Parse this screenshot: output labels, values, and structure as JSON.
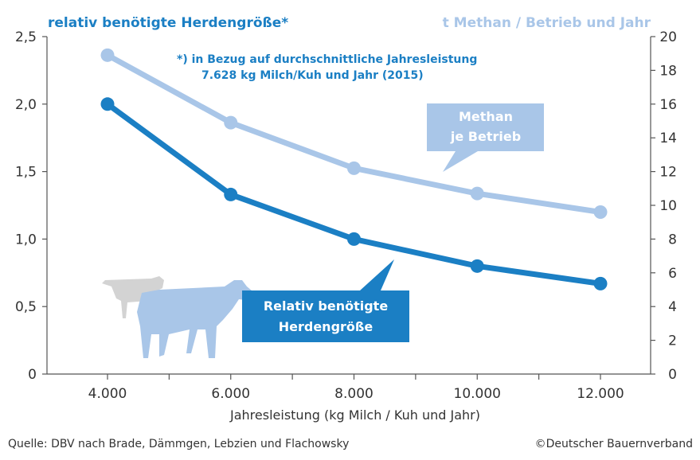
{
  "chart_data": {
    "type": "line",
    "left_axis_title": "relativ benötigte Herdengröße*",
    "right_axis_title": "t Methan / Betrieb und Jahr",
    "footnote": [
      "*) in Bezug auf durchschnittliche Jahresleistung",
      "7.628 kg Milch/Kuh und Jahr (2015)"
    ],
    "xlabel": "Jahresleistung (kg Milch / Kuh und Jahr)",
    "x": [
      4000,
      6000,
      8000,
      10000,
      12000
    ],
    "x_tick_labels": [
      "4.000",
      "6.000",
      "8.000",
      "10.000",
      "12.000"
    ],
    "y_left_ticks": [
      "0",
      "0,5",
      "1,0",
      "1,5",
      "2,0",
      "2,5"
    ],
    "y_right_ticks": [
      "0",
      "2",
      "4",
      "6",
      "8",
      "10",
      "12",
      "14",
      "16",
      "18",
      "20"
    ],
    "ylim_left": [
      0,
      2.5
    ],
    "ylim_right": [
      0,
      20
    ],
    "grid": false,
    "series": [
      {
        "name": "Methan je Betrieb",
        "axis": "right",
        "color": "#a9c6e8",
        "values": [
          18.9,
          14.9,
          12.2,
          10.7,
          9.6
        ]
      },
      {
        "name": "Relativ benötigte Herdengröße",
        "axis": "left",
        "color": "#1b7fc4",
        "values": [
          2.0,
          1.33,
          1.0,
          0.8,
          0.67
        ]
      }
    ],
    "callouts": {
      "methan": [
        "Methan",
        "je Betrieb"
      ],
      "herde": [
        "Relativ benötigte",
        "Herdengröße"
      ]
    }
  },
  "source": "Quelle: DBV nach Brade, Dämmgen, Lebzien und Flachowsky",
  "copyright": "©Deutscher Bauernverband",
  "colors": {
    "dark_blue": "#1b7fc4",
    "light_blue": "#a9c6e8",
    "text": "#333333",
    "cow_light": "#cfcfcf"
  },
  "icons": [
    "cow-icon",
    "cow-icon"
  ]
}
